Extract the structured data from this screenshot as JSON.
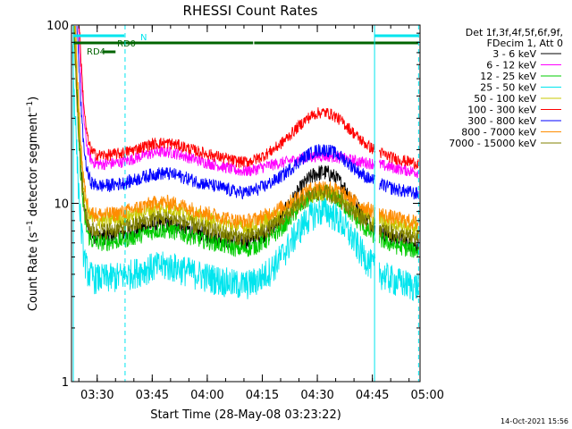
{
  "chart_data": {
    "type": "line",
    "title": "RHESSI Count Rates",
    "xlabel": "Start Time (28-May-08 03:23:22)",
    "ylabel_main": "Count Rate (s",
    "ylabel_sup": "−1",
    "ylabel_tail": " detector segment",
    "ylabel_sup2": "−1",
    "ylabel_close": ")",
    "y_scale": "log",
    "ylim": [
      1,
      100
    ],
    "y_ticks": [
      {
        "value": 1,
        "label": "1"
      },
      {
        "value": 10,
        "label": "10"
      },
      {
        "value": 100,
        "label": "100"
      }
    ],
    "x_range_min": [
      203,
      298
    ],
    "x_ticks": [
      {
        "value": 210,
        "label": "03:30"
      },
      {
        "value": 225,
        "label": "03:45"
      },
      {
        "value": 240,
        "label": "04:00"
      },
      {
        "value": 255,
        "label": "04:15"
      },
      {
        "value": 270,
        "label": "04:30"
      },
      {
        "value": 285,
        "label": "04:45"
      },
      {
        "value": 300,
        "label": "05:00"
      }
    ],
    "legend_header": [
      "Det 1f,3f,4f,5f,6f,9f,",
      "FDecim 1, Att 0"
    ],
    "series": [
      {
        "name": "3 - 6 keV",
        "color": "#000000",
        "base": 6.5,
        "flare": 2.3,
        "spike_decay": 18,
        "noise": 0.05
      },
      {
        "name": "6 - 12 keV",
        "color": "#ff00ff",
        "base": 16.5,
        "flare": 1.12,
        "spike_decay": 26,
        "noise": 0.035
      },
      {
        "name": "12 - 25 keV",
        "color": "#00cc00",
        "base": 6.0,
        "flare": 1.9,
        "spike_decay": 16,
        "noise": 0.05
      },
      {
        "name": "25 - 50 keV",
        "color": "#00e5ee",
        "base": 3.8,
        "flare": 2.4,
        "spike_decay": 12,
        "noise": 0.09
      },
      {
        "name": "50 - 100 keV",
        "color": "#c8c800",
        "base": 8.0,
        "flare": 1.45,
        "spike_decay": 16,
        "noise": 0.05
      },
      {
        "name": "100 - 300 keV",
        "color": "#ff0000",
        "base": 18.5,
        "flare": 1.75,
        "spike_decay": 30,
        "noise": 0.035
      },
      {
        "name": "300 - 800 keV",
        "color": "#0000ff",
        "base": 12.5,
        "flare": 1.6,
        "spike_decay": 22,
        "noise": 0.04
      },
      {
        "name": "800 - 7000 keV",
        "color": "#ff8c00",
        "base": 8.6,
        "flare": 1.45,
        "spike_decay": 18,
        "noise": 0.045
      },
      {
        "name": "7000 - 15000 keV",
        "color": "#808000",
        "base": 7.0,
        "flare": 1.65,
        "spike_decay": 14,
        "noise": 0.05
      }
    ],
    "flags": [
      {
        "label": "N",
        "color": "#00e5ee",
        "segments": [
          [
            203.5,
            217.4
          ],
          [
            285.6,
            297.5
          ]
        ]
      },
      {
        "label": "RD0",
        "color": "#006400",
        "segments": [
          [
            203.5,
            252.5
          ],
          [
            252.8,
            285.6
          ],
          [
            285.6,
            297.5
          ]
        ]
      },
      {
        "label": "RD4",
        "color": "#006400",
        "segments": [
          [
            211.4,
            215.0
          ]
        ]
      }
    ],
    "markers": [
      {
        "minute": 203.5,
        "style": "solid"
      },
      {
        "minute": 217.6,
        "style": "dashed"
      },
      {
        "minute": 285.6,
        "style": "solid"
      },
      {
        "minute": 297.6,
        "style": "dashed"
      }
    ]
  },
  "footer": {
    "timestamp": "14-Oct-2021 15:56"
  }
}
